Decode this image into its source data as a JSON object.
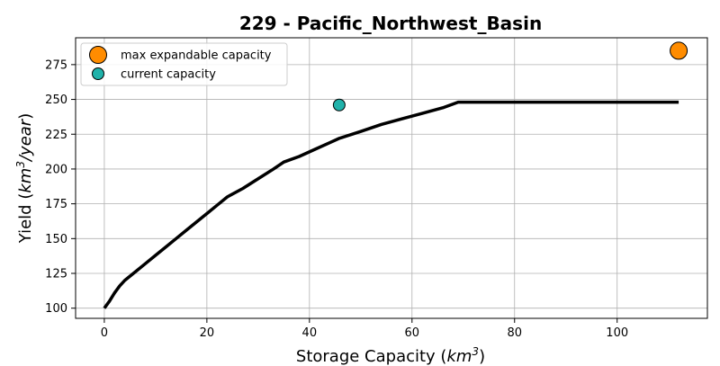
{
  "chart_data": {
    "type": "line",
    "title": "229 - Pacific_Northwest_Basin",
    "xlabel": {
      "text": "Storage Capacity (",
      "unit": "km",
      "sup": "3",
      "close": ")"
    },
    "ylabel": {
      "text": "Yield (",
      "unit": "km",
      "sup": "3",
      "slash": "/",
      "unit2": "year",
      "close": ")"
    },
    "xlim": [
      -5.6,
      117.6
    ],
    "ylim": [
      92.7,
      294.3
    ],
    "xticks": [
      0,
      20,
      40,
      60,
      80,
      100
    ],
    "yticks": [
      100,
      125,
      150,
      175,
      200,
      225,
      250,
      275
    ],
    "grid": true,
    "legend_position": "upper-left",
    "series": [
      {
        "kind": "line",
        "color": "#000000",
        "x": [
          0,
          1,
          2,
          3,
          4,
          6,
          8,
          10,
          12,
          14,
          16,
          18,
          20,
          22,
          24,
          27,
          30,
          33,
          35,
          38,
          41,
          44,
          45.8,
          50,
          54,
          58,
          62,
          66,
          69,
          80,
          90,
          100,
          112
        ],
        "y": [
          100,
          105,
          111,
          116,
          120,
          126,
          132,
          138,
          144,
          150,
          156,
          162,
          168,
          174,
          180,
          186,
          193,
          200,
          205,
          209,
          214,
          219,
          222,
          227,
          232,
          236,
          240,
          244,
          248,
          248,
          248,
          248,
          248
        ]
      }
    ],
    "points": [
      {
        "name": "max expandable capacity",
        "x": 112,
        "y": 285,
        "color": "#ff8c00",
        "size": "large"
      },
      {
        "name": "current capacity",
        "x": 45.8,
        "y": 246,
        "color": "#20b2aa",
        "size": "small"
      }
    ],
    "legend": [
      {
        "label": "max expandable capacity",
        "color": "#ff8c00",
        "size": "large"
      },
      {
        "label": "current capacity",
        "color": "#20b2aa",
        "size": "small"
      }
    ]
  }
}
